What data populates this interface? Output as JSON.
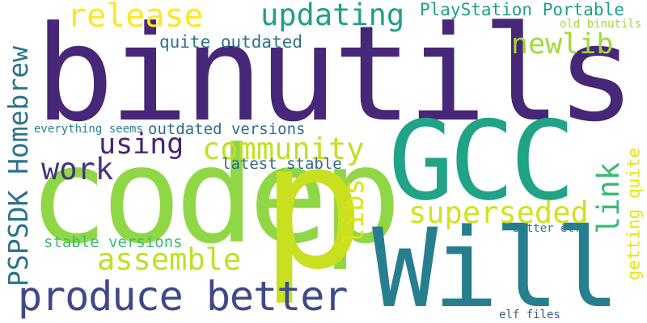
{
  "words": [
    {
      "id": "binutils",
      "text": "binutils",
      "color": "#472777"
    },
    {
      "id": "codep",
      "text": "codep",
      "color": "#8fd744"
    },
    {
      "id": "p",
      "text": "p",
      "color": "#c8e020"
    },
    {
      "id": "gcc",
      "text": "GCC",
      "color": "#20a386"
    },
    {
      "id": "will",
      "text": "Will",
      "color": "#277e8e"
    },
    {
      "id": "produce-better",
      "text": "produce better",
      "color": "#3f4889"
    },
    {
      "id": "pspsdk-homebrew",
      "text": "PSPSDK Homebrew",
      "color": "#2c728e"
    },
    {
      "id": "release",
      "text": "release",
      "color": "#fde725"
    },
    {
      "id": "updating",
      "text": "updating",
      "color": "#1fa088"
    },
    {
      "id": "playstation-portable",
      "text": "PlayStation Portable",
      "color": "#1f9e89"
    },
    {
      "id": "newlib",
      "text": "newlib",
      "color": "#a0da39"
    },
    {
      "id": "quite-outdated",
      "text": "quite outdated",
      "color": "#2d718e"
    },
    {
      "id": "community",
      "text": "community",
      "color": "#c2df23"
    },
    {
      "id": "using",
      "text": "using",
      "color": "#482475"
    },
    {
      "id": "work",
      "text": "work",
      "color": "#46337e"
    },
    {
      "id": "outdated-versions",
      "text": "outdated versions",
      "color": "#2e6d8e"
    },
    {
      "id": "everything-seems",
      "text": "everything seems",
      "color": "#26828e"
    },
    {
      "id": "latest-stable",
      "text": "latest stable",
      "color": "#31688e"
    },
    {
      "id": "libs",
      "text": "libs",
      "color": "#dde318"
    },
    {
      "id": "superseded",
      "text": "superseded",
      "color": "#d2e21b"
    },
    {
      "id": "link",
      "text": "link",
      "color": "#3aba76"
    },
    {
      "id": "assemble",
      "text": "assemble",
      "color": "#c0df25"
    },
    {
      "id": "stable-versions",
      "text": "stable versions",
      "color": "#3bbb75"
    },
    {
      "id": "getting-quite",
      "text": "getting quite",
      "color": "#e5e419"
    },
    {
      "id": "old-binutils",
      "text": "old binutils",
      "color": "#a2da37"
    },
    {
      "id": "better-elf",
      "text": "better elf",
      "color": "#2a788e"
    },
    {
      "id": "elf-files",
      "text": "elf files",
      "color": "#38598c"
    }
  ]
}
